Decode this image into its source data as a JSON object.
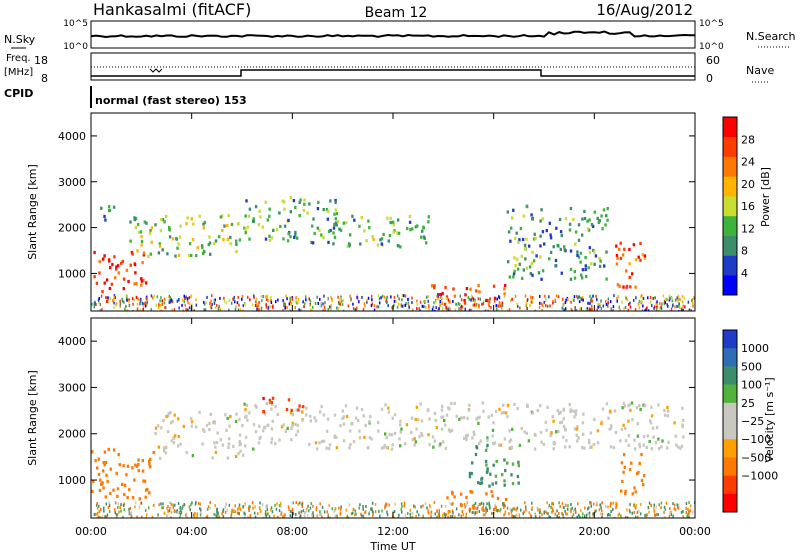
{
  "header": {
    "station": "Hankasalmi (fitACF)",
    "beam": "Beam 12",
    "date": "16/Aug/2012"
  },
  "top_panels": {
    "nsky_label": "N.Sky",
    "nsearch_label": "N.Search",
    "noise_ticks": [
      "10^5",
      "10^0"
    ],
    "freq_label_line1": "Freq.",
    "freq_label_line2": "[MHz]",
    "freq_ticks": [
      "18",
      "8"
    ],
    "nave_label": "Nave",
    "nave_ticks": [
      "60",
      "0"
    ],
    "cpid_label": "CPID",
    "cpid_text": "normal (fast stereo) 153"
  },
  "power_colorbar": {
    "label": "Power [dB]",
    "ticks": [
      "4",
      "8",
      "12",
      "16",
      "20",
      "24",
      "28"
    ],
    "colors": [
      "#0000ff",
      "#1e3cc8",
      "#3c8c6e",
      "#3cb43c",
      "#c8dc32",
      "#ffb400",
      "#ff7800",
      "#ff3c00",
      "#ff0000"
    ]
  },
  "velocity_colorbar": {
    "label": "Velocity [m s⁻¹]",
    "ticks": [
      "1000",
      "500",
      "100",
      "25",
      "−25",
      "−100",
      "−500",
      "−1000"
    ],
    "colors": [
      "#1e3cc8",
      "#2d6eb4",
      "#3c8c6e",
      "#50b43c",
      "#c8c8c0",
      "#c8c8c0",
      "#ffa000",
      "#ff7800",
      "#ff3c00",
      "#ff0000"
    ]
  },
  "chart_data": [
    {
      "type": "heatmap",
      "name": "power",
      "ylabel": "Slant Range [km]",
      "xlabel": "",
      "xlim": [
        0,
        24
      ],
      "ylim": [
        180,
        4500
      ],
      "yticks": [
        "1000",
        "2000",
        "3000",
        "4000"
      ],
      "features": [
        {
          "t": [
            0.0,
            2.2
          ],
          "r": [
            600,
            1500
          ],
          "level": 28
        },
        {
          "t": [
            0.2,
            1.2
          ],
          "r": [
            2200,
            2500
          ],
          "level": 10
        },
        {
          "t": [
            1.5,
            5.9
          ],
          "r": [
            1400,
            2300
          ],
          "level": 14
        },
        {
          "t": [
            6.0,
            9.8
          ],
          "r": [
            1700,
            2700
          ],
          "level": 12
        },
        {
          "t": [
            9.5,
            13.5
          ],
          "r": [
            1600,
            2300
          ],
          "level": 12
        },
        {
          "t": [
            13.5,
            16.5
          ],
          "r": [
            300,
            800
          ],
          "level": 26
        },
        {
          "t": [
            16.5,
            20.5
          ],
          "r": [
            900,
            2500
          ],
          "level": 10
        },
        {
          "t": [
            20.8,
            22.0
          ],
          "r": [
            600,
            1700
          ],
          "level": 26
        }
      ]
    },
    {
      "type": "heatmap",
      "name": "velocity",
      "ylabel": "Slant Range [km]",
      "xlabel": "Time UT",
      "xlim": [
        0,
        24
      ],
      "ylim": [
        180,
        4500
      ],
      "yticks": [
        "1000",
        "2000",
        "3000",
        "4000"
      ],
      "xticks": [
        "00:00",
        "04:00",
        "08:00",
        "12:00",
        "16:00",
        "20:00",
        "00:00"
      ],
      "features": [
        {
          "t": [
            0.0,
            2.5
          ],
          "r": [
            600,
            1700
          ],
          "v": -300
        },
        {
          "t": [
            2.5,
            6.0
          ],
          "r": [
            1500,
            2500
          ],
          "v": 0
        },
        {
          "t": [
            6.0,
            23.5
          ],
          "r": [
            1700,
            2700
          ],
          "v": 0
        },
        {
          "t": [
            6.5,
            8.5
          ],
          "r": [
            2500,
            2800
          ],
          "v": -800
        },
        {
          "t": [
            14.0,
            16.5
          ],
          "r": [
            350,
            800
          ],
          "v": -300
        },
        {
          "t": [
            15.0,
            17.0
          ],
          "r": [
            900,
            1800
          ],
          "v": 120
        },
        {
          "t": [
            21.0,
            22.0
          ],
          "r": [
            700,
            1600
          ],
          "v": -200
        }
      ]
    }
  ]
}
